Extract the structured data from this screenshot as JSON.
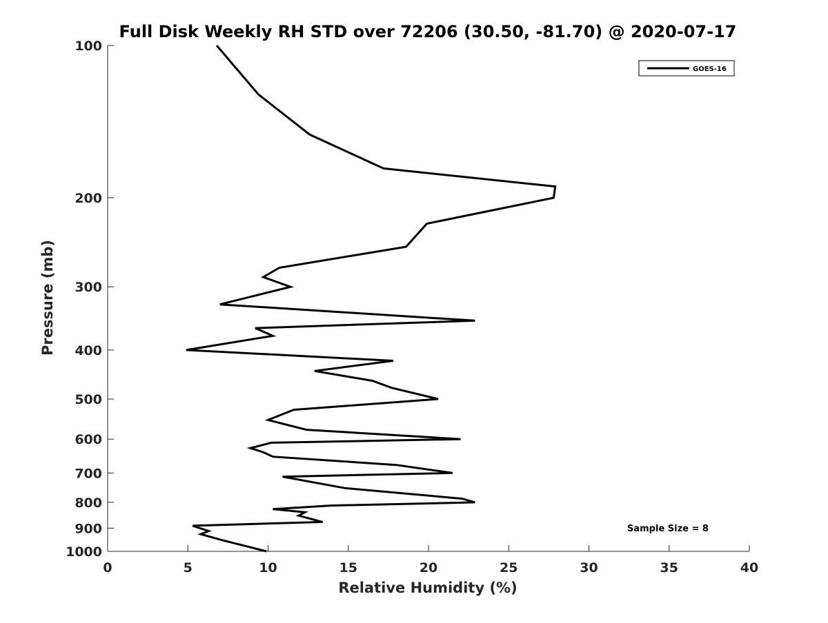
{
  "chart_data": {
    "type": "line",
    "title": "Full Disk Weekly RH STD over 72206 (30.50, -81.70) @ 2020-07-17",
    "xlabel": "Relative Humidity (%)",
    "ylabel": "Pressure (mb)",
    "xlim": [
      0,
      40
    ],
    "ylim": [
      100,
      1000
    ],
    "yscale": "log",
    "y_reversed": true,
    "x_ticks": [
      0,
      5,
      10,
      15,
      20,
      25,
      30,
      35,
      40
    ],
    "x_tick_labels": [
      "0",
      "5",
      "10",
      "15",
      "20",
      "25",
      "30",
      "35",
      "40"
    ],
    "y_ticks": [
      100,
      200,
      300,
      400,
      500,
      600,
      700,
      800,
      900,
      1000
    ],
    "y_tick_labels": [
      "100",
      "200",
      "300",
      "400",
      "500",
      "600",
      "700",
      "800",
      "900",
      "1000"
    ],
    "grid": false,
    "legend_position": "top-right",
    "annotation": "Sample Size = 8",
    "series": [
      {
        "name": "GOES-16",
        "color": "#000000",
        "x": [
          6.8,
          9.4,
          12.6,
          17.2,
          27.9,
          27.8,
          19.9,
          18.6,
          10.7,
          9.7,
          11.4,
          7.0,
          22.9,
          9.2,
          10.3,
          4.9,
          17.8,
          12.9,
          16.5,
          17.7,
          20.6,
          11.6,
          10.0,
          12.4,
          22.0,
          10.2,
          8.9,
          9.7,
          10.3,
          18.0,
          21.5,
          10.9,
          14.8,
          22.1,
          22.9,
          13.9,
          10.3,
          12.3,
          11.9,
          13.4,
          5.3,
          6.3,
          5.8,
          7.1,
          9.9
        ],
        "y": [
          100,
          125,
          150,
          175,
          190,
          200,
          225,
          250,
          275,
          287,
          300,
          325,
          350,
          362,
          375,
          400,
          420,
          440,
          460,
          475,
          500,
          525,
          550,
          575,
          600,
          610,
          625,
          637,
          650,
          675,
          700,
          712,
          750,
          787,
          800,
          812,
          825,
          837,
          850,
          875,
          890,
          912,
          925,
          950,
          1000
        ]
      }
    ]
  }
}
